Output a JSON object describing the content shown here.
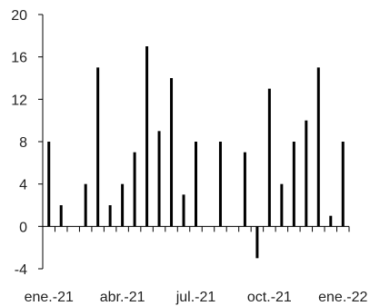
{
  "chart_data": {
    "type": "bar",
    "title": "",
    "xlabel": "",
    "ylabel": "",
    "ylim": [
      -4,
      20
    ],
    "yticks": [
      -4,
      0,
      4,
      8,
      12,
      16,
      20
    ],
    "ytick_labels": [
      "-4",
      "0",
      "4",
      "8",
      "12",
      "16",
      "20"
    ],
    "xtick_labels": [
      "ene.-21",
      "abr.-21",
      "jul.-21",
      "oct.-21",
      "ene.-22"
    ],
    "xtick_label_slots": [
      0,
      6,
      12,
      18,
      24
    ],
    "slots": 25,
    "bar_color": "#000000",
    "grid": false,
    "legend": "none",
    "values": [
      8,
      2,
      0,
      4,
      15,
      2,
      4,
      7,
      17,
      9,
      14,
      3,
      8,
      0,
      8,
      0,
      7,
      -3,
      13,
      4,
      8,
      10,
      15,
      1,
      8
    ]
  }
}
